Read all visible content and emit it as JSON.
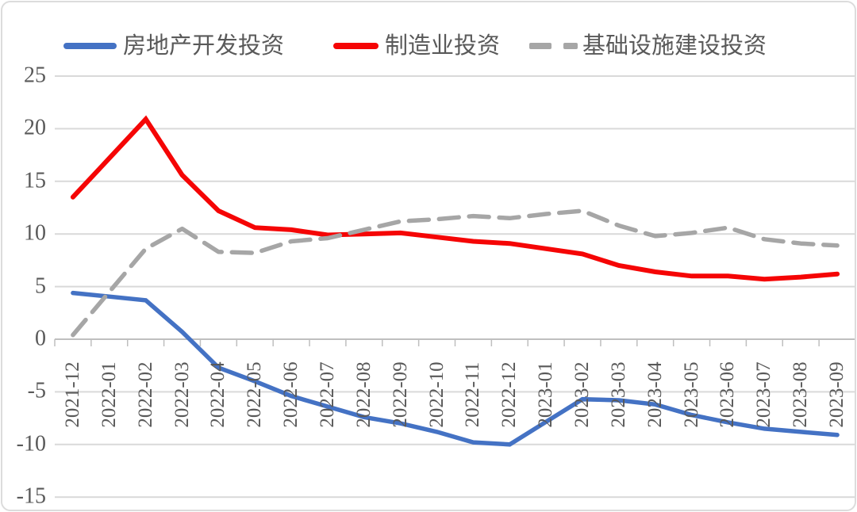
{
  "page": {
    "background": "#ffffff",
    "border_color": "#dcdcdc"
  },
  "legend": {
    "items": [
      {
        "label": "房地产开发投资",
        "color": "#4472c4",
        "style": "solid"
      },
      {
        "label": "制造业投资",
        "color": "#f50505",
        "style": "solid"
      },
      {
        "label": "基础设施建设投资",
        "color": "#a6a6a6",
        "style": "dashed"
      }
    ]
  },
  "chart_data": {
    "type": "line",
    "title": "",
    "xlabel": "",
    "ylabel": "",
    "ylim": [
      -15,
      25
    ],
    "y_ticks": [
      25,
      20,
      15,
      10,
      5,
      0,
      -5,
      -10,
      -15
    ],
    "grid": "horizontal",
    "legend_position": "top",
    "grid_color": "#d9d9d9",
    "axis_color": "#bfbfbf",
    "text_color": "#595959",
    "categories": [
      "2021-12",
      "2022-01",
      "2022-02",
      "2022-03",
      "2022-04",
      "2022-05",
      "2022-06",
      "2022-07",
      "2022-08",
      "2022-09",
      "2022-10",
      "2022-11",
      "2022-12",
      "2023-01",
      "2023-02",
      "2023-03",
      "2023-04",
      "2023-05",
      "2023-06",
      "2023-07",
      "2023-08",
      "2023-09"
    ],
    "series": [
      {
        "name": "房地产开发投资",
        "color": "#4472c4",
        "dash": false,
        "width": 5.5,
        "values": [
          4.4,
          4.05,
          3.7,
          0.7,
          -2.7,
          -4.0,
          -5.4,
          -6.4,
          -7.4,
          -8.0,
          -8.8,
          -9.8,
          -10.0,
          -7.85,
          -5.7,
          -5.8,
          -6.2,
          -7.2,
          -7.9,
          -8.5,
          -8.8,
          -9.1
        ]
      },
      {
        "name": "制造业投资",
        "color": "#f50505",
        "dash": false,
        "width": 6,
        "values": [
          13.5,
          17.2,
          20.9,
          15.6,
          12.2,
          10.6,
          10.4,
          9.9,
          10.0,
          10.1,
          9.7,
          9.3,
          9.1,
          8.6,
          8.1,
          7.0,
          6.4,
          6.0,
          6.0,
          5.7,
          5.9,
          6.2
        ]
      },
      {
        "name": "基础设施建设投资",
        "color": "#a6a6a6",
        "dash": true,
        "width": 5.5,
        "values": [
          0.4,
          4.5,
          8.6,
          10.5,
          8.3,
          8.2,
          9.3,
          9.6,
          10.4,
          11.2,
          11.4,
          11.7,
          11.5,
          11.9,
          12.2,
          10.8,
          9.8,
          10.1,
          10.6,
          9.5,
          9.1,
          8.9
        ]
      }
    ]
  }
}
